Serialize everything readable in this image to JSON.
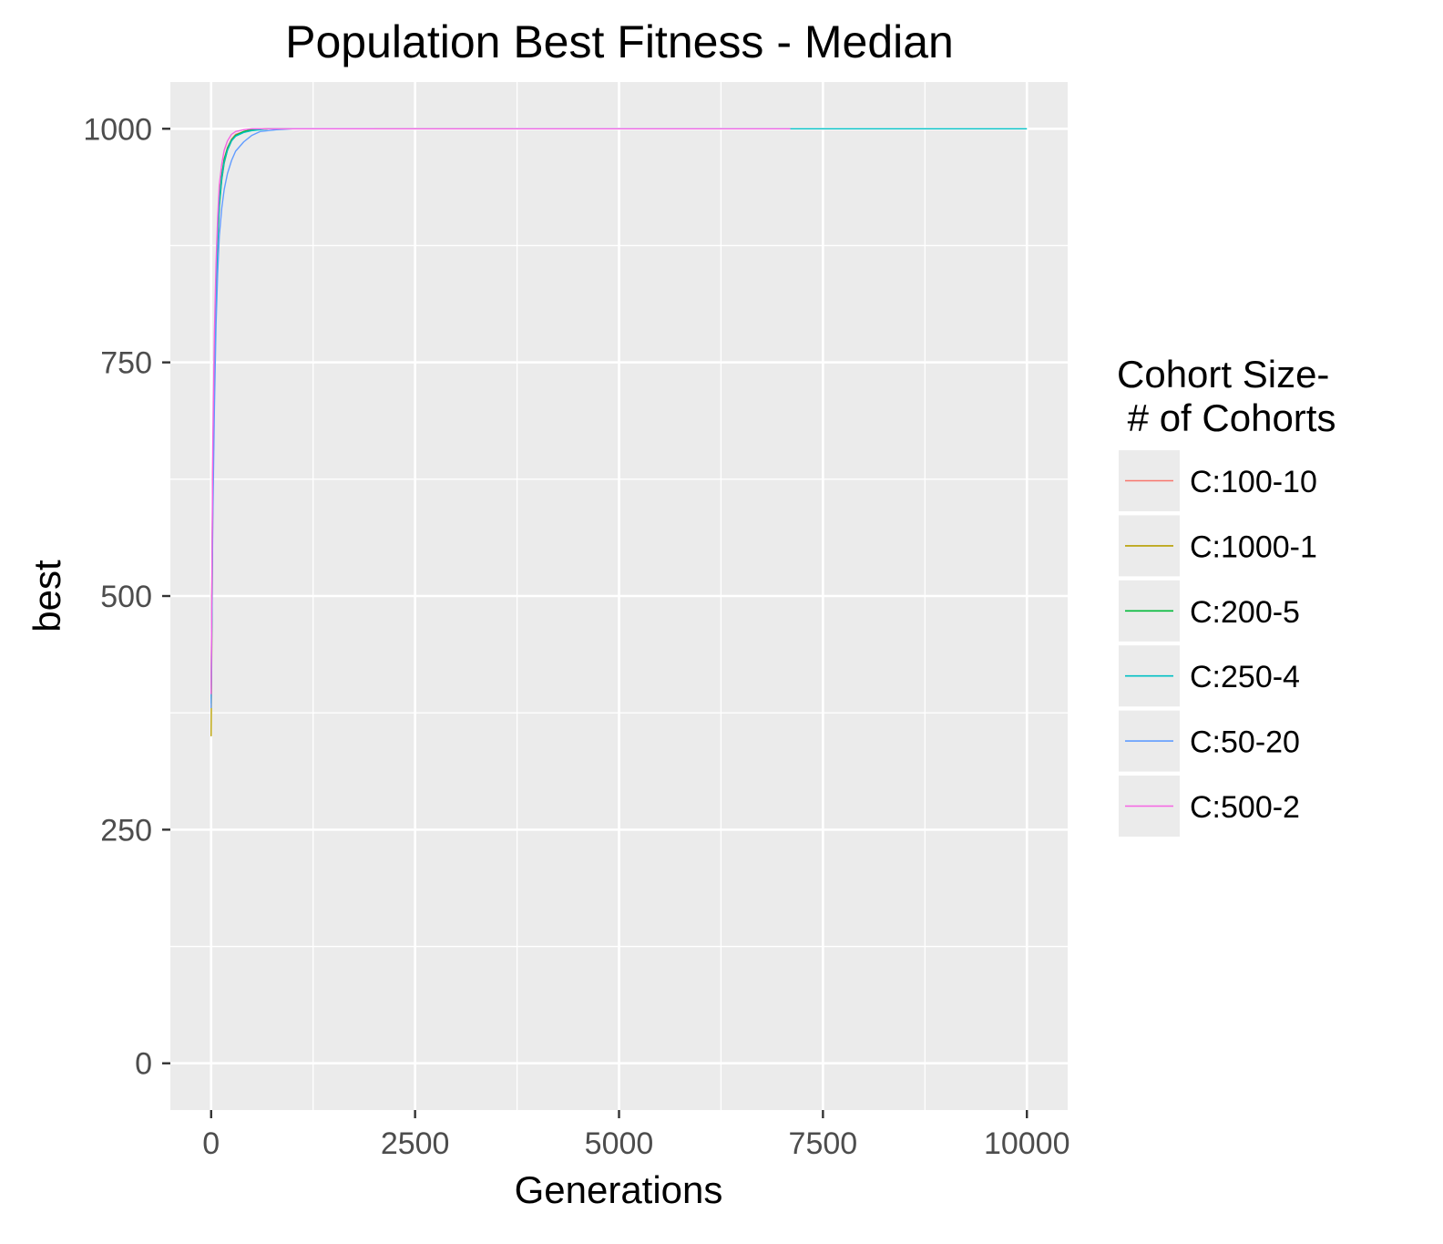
{
  "chart_data": {
    "type": "line",
    "title": "Population Best Fitness - Median",
    "xlabel": "Generations",
    "ylabel": "best",
    "xlim": [
      -500,
      10500
    ],
    "ylim": [
      -50,
      1050
    ],
    "x_ticks": [
      0,
      2500,
      5000,
      7500,
      10000
    ],
    "x_tick_labels": [
      "0",
      "2500",
      "5000",
      "7500",
      "10000"
    ],
    "y_ticks": [
      0,
      250,
      500,
      750,
      1000
    ],
    "y_tick_labels": [
      "0",
      "250",
      "500",
      "750",
      "1000"
    ],
    "grid": true,
    "legend": {
      "title_line1": "Cohort Size-",
      "title_line2": " # of Cohorts",
      "position": "right"
    },
    "series": [
      {
        "name": "C:100-10",
        "color": "#F8766D",
        "x": [
          0,
          10,
          20,
          40,
          60,
          80,
          100,
          130,
          160,
          200,
          250,
          300,
          400,
          500,
          700,
          1000,
          2000,
          3000
        ],
        "y": [
          400,
          520,
          640,
          760,
          840,
          890,
          925,
          950,
          968,
          980,
          989,
          994,
          997,
          999,
          1000,
          1000,
          1000,
          1000
        ]
      },
      {
        "name": "C:1000-1",
        "color": "#B79F00",
        "x": [
          0,
          10,
          20,
          40,
          60,
          80,
          100,
          130,
          160,
          200,
          250,
          300,
          400,
          500,
          700,
          1000,
          2000,
          3700
        ],
        "y": [
          350,
          470,
          600,
          730,
          820,
          875,
          915,
          945,
          963,
          977,
          987,
          993,
          997,
          999,
          1000,
          1000,
          1000,
          1000
        ]
      },
      {
        "name": "C:200-5",
        "color": "#00BA38",
        "x": [
          0,
          10,
          20,
          40,
          60,
          80,
          100,
          130,
          160,
          200,
          250,
          300,
          400,
          500,
          700,
          1000,
          2000
        ],
        "y": [
          390,
          510,
          630,
          750,
          835,
          885,
          922,
          950,
          967,
          979,
          988,
          993,
          997,
          999,
          1000,
          1000,
          1000
        ]
      },
      {
        "name": "C:250-4",
        "color": "#00BFC4",
        "x": [
          0,
          10,
          20,
          40,
          60,
          80,
          100,
          130,
          160,
          200,
          250,
          300,
          400,
          500,
          700,
          1000,
          3000,
          5000,
          7000,
          10000
        ],
        "y": [
          385,
          500,
          620,
          740,
          828,
          880,
          918,
          946,
          964,
          977,
          987,
          992,
          996,
          998,
          1000,
          1000,
          1000,
          1000,
          1000,
          1000
        ]
      },
      {
        "name": "C:50-20",
        "color": "#619CFF",
        "x": [
          0,
          10,
          20,
          40,
          60,
          80,
          100,
          130,
          160,
          200,
          250,
          300,
          400,
          500,
          600,
          800,
          1000,
          2000
        ],
        "y": [
          380,
          480,
          580,
          700,
          790,
          845,
          885,
          915,
          935,
          952,
          966,
          976,
          986,
          993,
          997,
          999,
          1000,
          1000
        ]
      },
      {
        "name": "C:500-2",
        "color": "#F564E3",
        "x": [
          0,
          10,
          20,
          40,
          60,
          80,
          100,
          130,
          160,
          200,
          250,
          300,
          400,
          500,
          700,
          1000,
          3000,
          5000,
          7100
        ],
        "y": [
          395,
          530,
          660,
          780,
          855,
          905,
          940,
          962,
          977,
          987,
          994,
          997,
          999,
          1000,
          1000,
          1000,
          1000,
          1000,
          1000
        ]
      }
    ]
  }
}
